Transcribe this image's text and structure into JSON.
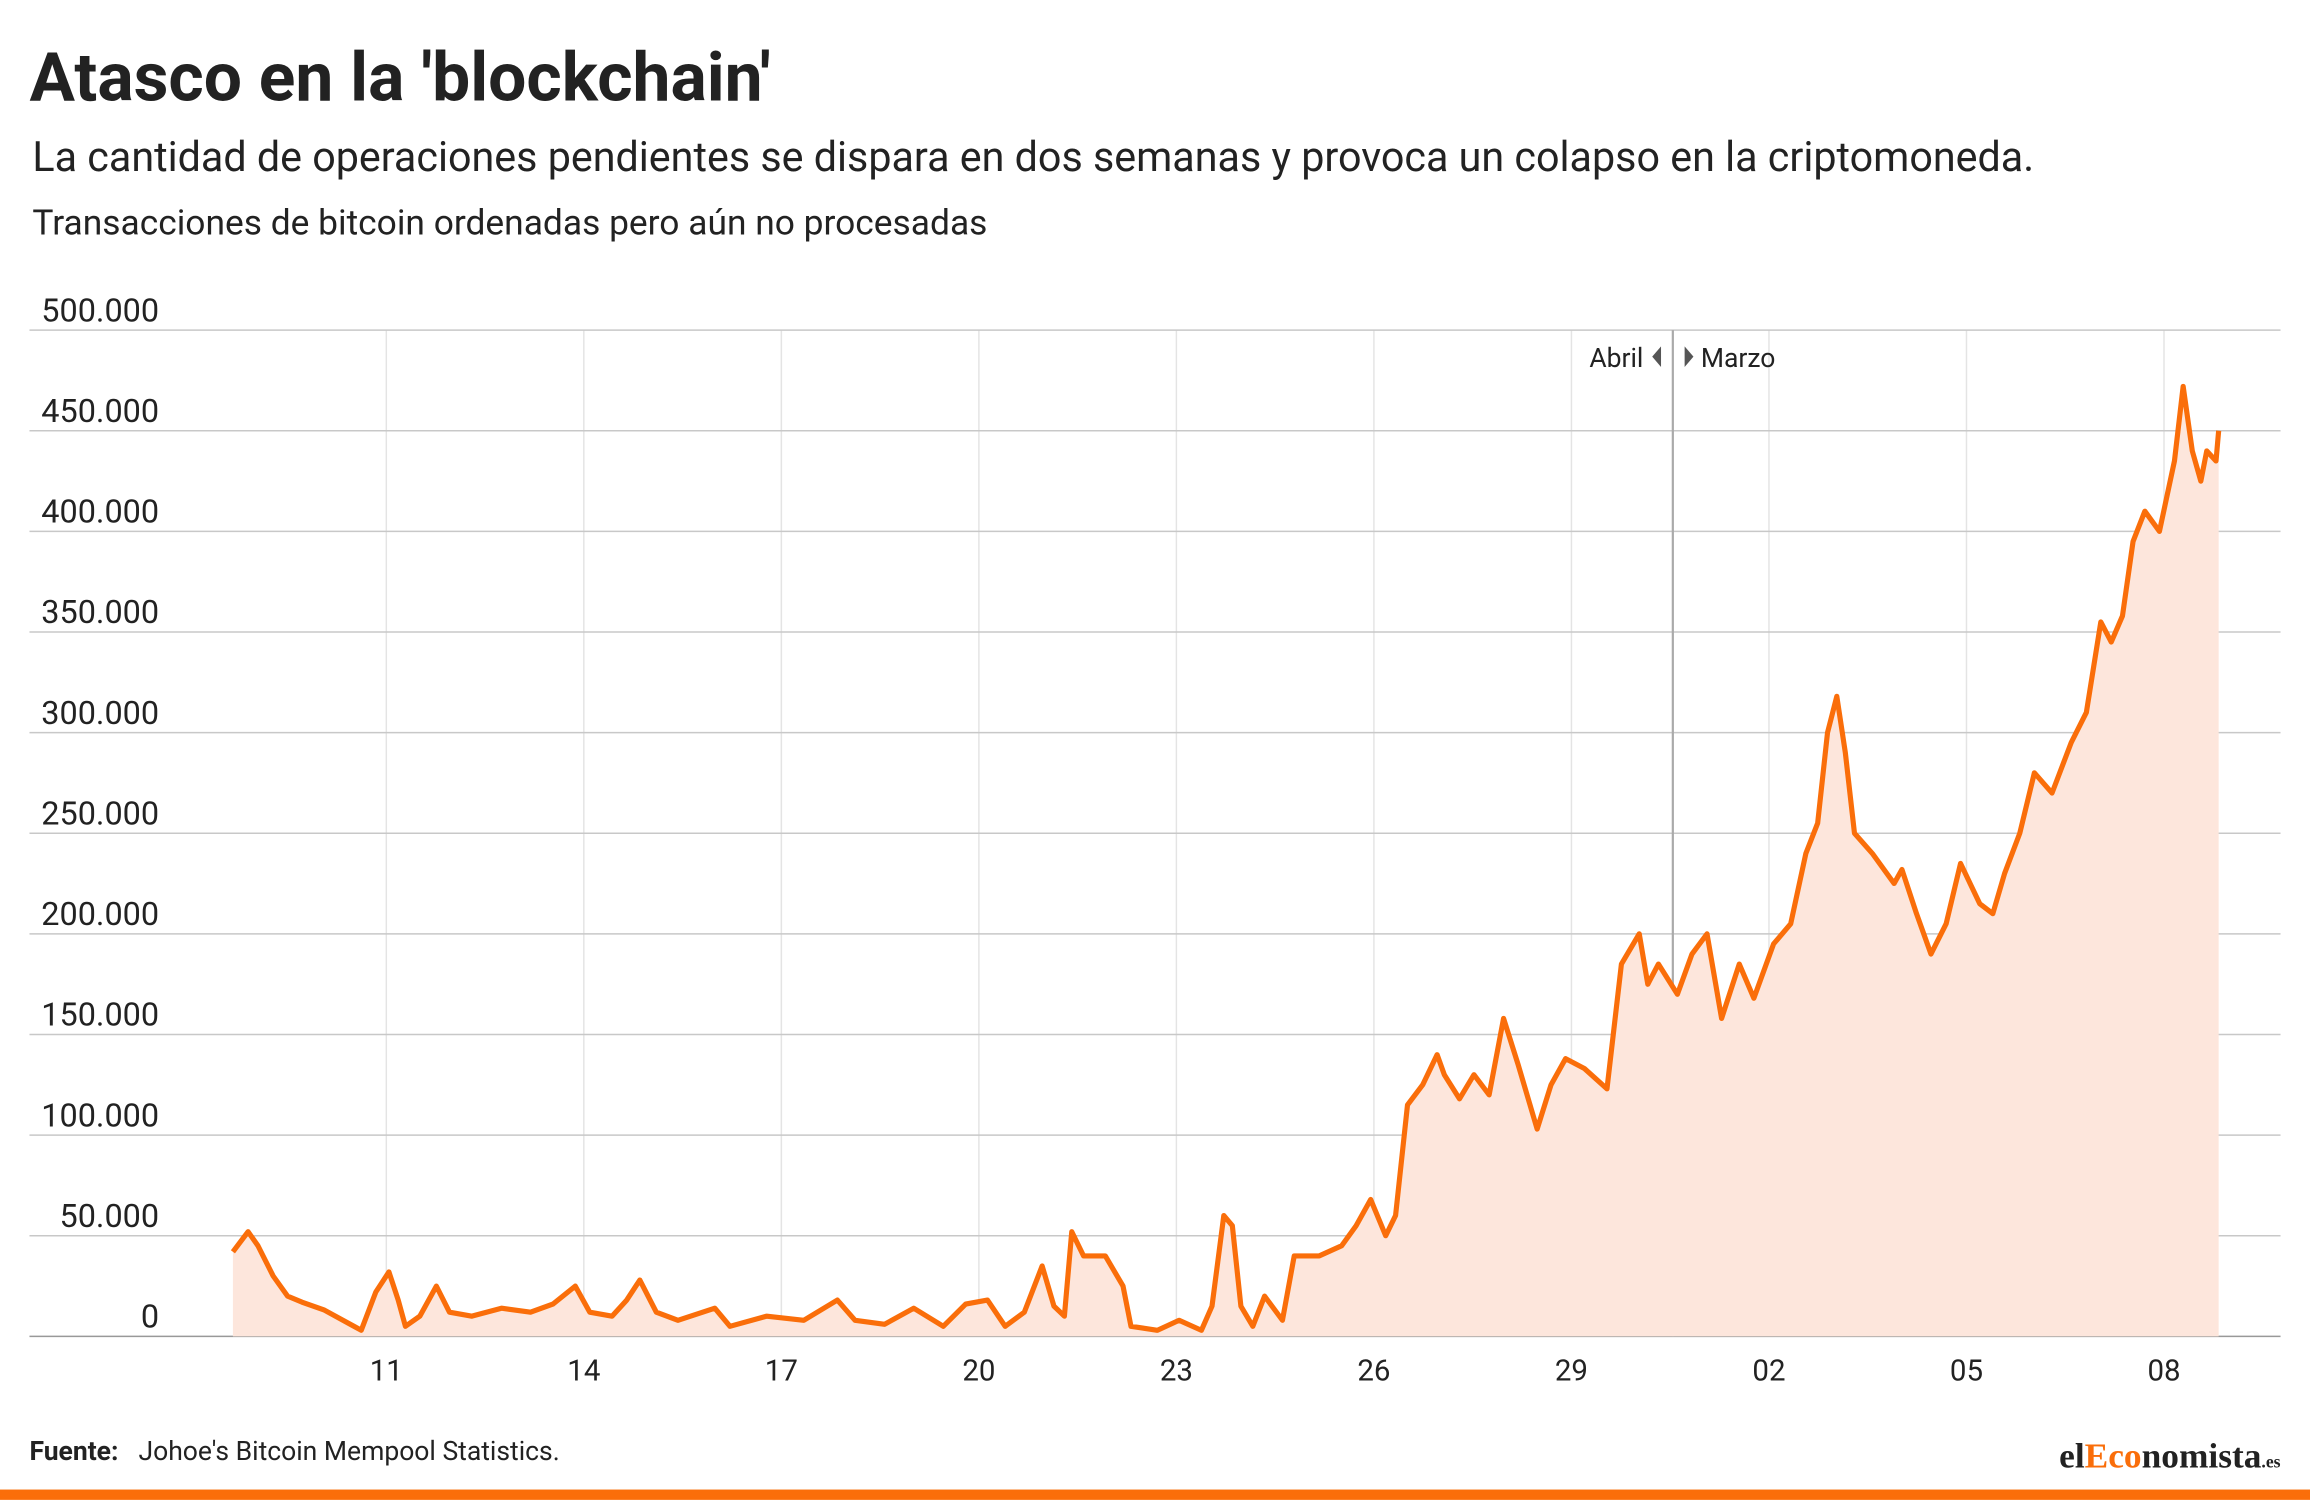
{
  "chart_data": {
    "type": "area",
    "title": "Atasco en la 'blockchain'",
    "subtitle": "La cantidad de operaciones pendientes se dispara en dos semanas y provoca un colapso en la criptomoneda.",
    "y_axis_label": "Transacciones de bitcoin ordenadas pero aún no procesadas",
    "source_label": "Fuente:",
    "source": "Johoe's Bitcoin Mempool Statistics.",
    "brand": [
      "el",
      "Eco",
      "nomista",
      ".es"
    ],
    "annotations": [
      {
        "x": 19.54,
        "left": "Abril",
        "right": "Marzo"
      }
    ],
    "color": "#fa6e0a",
    "fill": "#fde6dc",
    "grid": true,
    "xlim": [
      -5.42,
      28.77
    ],
    "xticks": [
      {
        "value": 0,
        "label": "11"
      },
      {
        "value": 3,
        "label": "14"
      },
      {
        "value": 6,
        "label": "17"
      },
      {
        "value": 9,
        "label": "20"
      },
      {
        "value": 12,
        "label": "23"
      },
      {
        "value": 15,
        "label": "26"
      },
      {
        "value": 18,
        "label": "29"
      },
      {
        "value": 21,
        "label": "02"
      },
      {
        "value": 24,
        "label": "05"
      },
      {
        "value": 27,
        "label": "08"
      }
    ],
    "ylim": [
      0,
      500000
    ],
    "yticks": [
      0,
      {
        "value": 50000,
        "label": "50.000"
      },
      {
        "value": 100000,
        "label": "100.000"
      },
      {
        "value": 150000,
        "label": "150.000"
      },
      {
        "value": 200000,
        "label": "200.000"
      },
      {
        "value": 250000,
        "label": "250.000"
      },
      {
        "value": 300000,
        "label": "300.000"
      },
      {
        "value": 350000,
        "label": "350.000"
      },
      {
        "value": 400000,
        "label": "400.000"
      },
      {
        "value": 450000,
        "label": "450.000"
      },
      {
        "value": 500000,
        "label": "500.000"
      }
    ],
    "x": [
      -2.33,
      -2.1,
      -1.95,
      -1.72,
      -1.5,
      -1.28,
      -0.94,
      -0.49,
      -0.38,
      -0.16,
      0.04,
      0.18,
      0.29,
      0.51,
      0.76,
      0.96,
      1.3,
      1.75,
      2.19,
      2.53,
      2.87,
      3.09,
      3.43,
      3.65,
      3.85,
      4.1,
      4.43,
      4.99,
      5.22,
      5.78,
      6.34,
      6.85,
      7.12,
      7.57,
      8.01,
      8.46,
      8.8,
      9.13,
      9.4,
      9.69,
      9.96,
      10.14,
      10.3,
      10.41,
      10.59,
      10.92,
      11.19,
      11.31,
      11.71,
      12.04,
      12.38,
      12.54,
      12.72,
      12.85,
      12.98,
      13.16,
      13.34,
      13.61,
      13.79,
      14.17,
      14.51,
      14.73,
      14.95,
      15.18,
      15.33,
      15.51,
      15.74,
      15.96,
      16.07,
      16.3,
      16.52,
      16.75,
      16.97,
      17.19,
      17.48,
      17.69,
      17.91,
      18.2,
      18.54,
      18.76,
      19.03,
      19.16,
      19.32,
      19.61,
      19.83,
      20.06,
      20.28,
      20.55,
      20.77,
      21.07,
      21.33,
      21.56,
      21.74,
      21.89,
      22.03,
      22.16,
      22.3,
      22.57,
      22.9,
      23.02,
      23.24,
      23.46,
      23.69,
      23.91,
      24.2,
      24.4,
      24.58,
      24.81,
      25.03,
      25.3,
      25.59,
      25.82,
      26.04,
      26.2,
      26.37,
      26.53,
      26.71,
      26.93,
      27.16,
      27.29,
      27.43,
      27.56,
      27.65,
      27.79,
      27.83
    ],
    "values": [
      42000,
      52000,
      45000,
      30000,
      20000,
      17000,
      13000,
      5000,
      3000,
      22000,
      32000,
      18000,
      5000,
      10000,
      25000,
      12000,
      10000,
      14000,
      12000,
      16000,
      25000,
      12000,
      10000,
      18000,
      28000,
      12000,
      8000,
      14000,
      5000,
      10000,
      8000,
      18000,
      8000,
      6000,
      14000,
      5000,
      16000,
      18000,
      5000,
      12000,
      35000,
      15000,
      10000,
      52000,
      40000,
      40000,
      25000,
      5000,
      3000,
      8000,
      3000,
      15000,
      60000,
      55000,
      15000,
      5000,
      20000,
      8000,
      40000,
      40000,
      45000,
      55000,
      68000,
      50000,
      60000,
      115000,
      125000,
      140000,
      130000,
      118000,
      130000,
      120000,
      158000,
      135000,
      103000,
      125000,
      138000,
      133000,
      123000,
      185000,
      200000,
      175000,
      185000,
      170000,
      190000,
      200000,
      158000,
      185000,
      168000,
      195000,
      205000,
      240000,
      255000,
      300000,
      318000,
      290000,
      250000,
      240000,
      225000,
      232000,
      210000,
      190000,
      205000,
      235000,
      215000,
      210000,
      230000,
      250000,
      280000,
      270000,
      295000,
      310000,
      355000,
      345000,
      358000,
      395000,
      410000,
      400000,
      435000,
      472000,
      440000,
      425000,
      440000,
      435000,
      450000
    ]
  }
}
